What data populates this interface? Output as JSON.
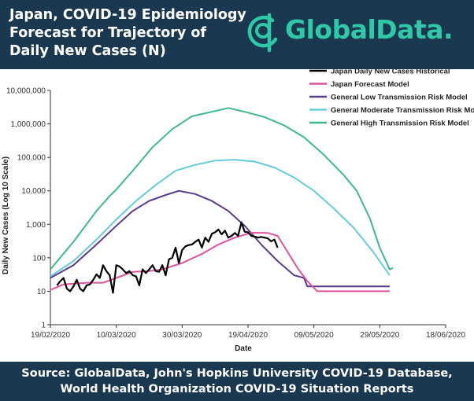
{
  "header": {
    "title_lines": [
      "Japan, COVID-19 Epidemiology",
      "Forecast for Trajectory of",
      "Daily New Cases (N)"
    ],
    "logo_text": "GlobalData.",
    "bg_color": "#1a3950",
    "logo_color": "#2fc9a7"
  },
  "footer": {
    "lines": [
      "Source: GlobalData, John's Hopkins University COVID-19 Database,",
      "World Health Organization COVID-19 Situation Reports"
    ]
  },
  "chart_data": {
    "type": "line",
    "xlabel": "Date",
    "ylabel": "Daily New Cases (Log 10 Scale)",
    "y_scale": "log",
    "ylim": [
      1,
      10000000
    ],
    "y_ticks": [
      "1",
      "10",
      "100",
      "1,000",
      "10,000",
      "100,000",
      "1,000,000",
      "10,000,000"
    ],
    "y_tick_values": [
      1,
      10,
      100,
      1000,
      10000,
      100000,
      1000000,
      10000000
    ],
    "xlim": [
      "2020-02-19",
      "2020-06-18"
    ],
    "x_ticks": [
      "19/02/2020",
      "10/03/2020",
      "30/03/2020",
      "19/04/2020",
      "09/05/2020",
      "29/05/2020",
      "18/06/2020"
    ],
    "x_tick_dates": [
      "2020-02-19",
      "2020-03-10",
      "2020-03-30",
      "2020-04-19",
      "2020-05-09",
      "2020-05-29",
      "2020-06-18"
    ],
    "legend_position": "top-right",
    "grid": false,
    "series": [
      {
        "name": "Japan Daily New Cases Historical",
        "color": "#000000",
        "points": [
          [
            "2020-02-21",
            15
          ],
          [
            "2020-02-22",
            20
          ],
          [
            "2020-02-23",
            25
          ],
          [
            "2020-02-24",
            12
          ],
          [
            "2020-02-25",
            10
          ],
          [
            "2020-02-26",
            14
          ],
          [
            "2020-02-27",
            22
          ],
          [
            "2020-02-28",
            12
          ],
          [
            "2020-02-29",
            10
          ],
          [
            "2020-03-01",
            15
          ],
          [
            "2020-03-02",
            16
          ],
          [
            "2020-03-03",
            22
          ],
          [
            "2020-03-04",
            32
          ],
          [
            "2020-03-05",
            25
          ],
          [
            "2020-03-06",
            60
          ],
          [
            "2020-03-07",
            40
          ],
          [
            "2020-03-08",
            30
          ],
          [
            "2020-03-09",
            9
          ],
          [
            "2020-03-10",
            60
          ],
          [
            "2020-03-11",
            55
          ],
          [
            "2020-03-12",
            45
          ],
          [
            "2020-03-13",
            35
          ],
          [
            "2020-03-14",
            40
          ],
          [
            "2020-03-15",
            30
          ],
          [
            "2020-03-16",
            28
          ],
          [
            "2020-03-17",
            15
          ],
          [
            "2020-03-18",
            45
          ],
          [
            "2020-03-19",
            35
          ],
          [
            "2020-03-20",
            45
          ],
          [
            "2020-03-21",
            60
          ],
          [
            "2020-03-22",
            40
          ],
          [
            "2020-03-23",
            38
          ],
          [
            "2020-03-24",
            60
          ],
          [
            "2020-03-25",
            30
          ],
          [
            "2020-03-26",
            90
          ],
          [
            "2020-03-27",
            100
          ],
          [
            "2020-03-28",
            200
          ],
          [
            "2020-03-29",
            70
          ],
          [
            "2020-03-30",
            170
          ],
          [
            "2020-03-31",
            220
          ],
          [
            "2020-04-01",
            240
          ],
          [
            "2020-04-02",
            250
          ],
          [
            "2020-04-03",
            300
          ],
          [
            "2020-04-04",
            350
          ],
          [
            "2020-04-05",
            200
          ],
          [
            "2020-04-06",
            400
          ],
          [
            "2020-04-07",
            300
          ],
          [
            "2020-04-08",
            520
          ],
          [
            "2020-04-09",
            580
          ],
          [
            "2020-04-10",
            700
          ],
          [
            "2020-04-11",
            500
          ],
          [
            "2020-04-12",
            650
          ],
          [
            "2020-04-13",
            400
          ],
          [
            "2020-04-14",
            450
          ],
          [
            "2020-04-15",
            550
          ],
          [
            "2020-04-16",
            450
          ],
          [
            "2020-04-17",
            1150
          ],
          [
            "2020-04-18",
            600
          ],
          [
            "2020-04-19",
            580
          ],
          [
            "2020-04-20",
            450
          ],
          [
            "2020-04-21",
            430
          ],
          [
            "2020-04-22",
            400
          ],
          [
            "2020-04-23",
            420
          ],
          [
            "2020-04-24",
            400
          ],
          [
            "2020-04-25",
            380
          ],
          [
            "2020-04-26",
            310
          ],
          [
            "2020-04-27",
            350
          ],
          [
            "2020-04-28",
            200
          ]
        ]
      },
      {
        "name": "Japan Forecast Model",
        "color": "#e0529e",
        "points": [
          [
            "2020-02-19",
            11
          ],
          [
            "2020-02-23",
            16
          ],
          [
            "2020-03-01",
            18
          ],
          [
            "2020-03-06",
            18
          ],
          [
            "2020-03-10",
            25
          ],
          [
            "2020-03-15",
            38
          ],
          [
            "2020-03-20",
            40
          ],
          [
            "2020-03-24",
            45
          ],
          [
            "2020-03-30",
            70
          ],
          [
            "2020-04-05",
            130
          ],
          [
            "2020-04-10",
            250
          ],
          [
            "2020-04-15",
            400
          ],
          [
            "2020-04-20",
            560
          ],
          [
            "2020-04-25",
            550
          ],
          [
            "2020-04-28",
            450
          ],
          [
            "2020-05-01",
            150
          ],
          [
            "2020-05-04",
            50
          ],
          [
            "2020-05-07",
            20
          ],
          [
            "2020-05-10",
            10
          ],
          [
            "2020-06-01",
            10
          ]
        ]
      },
      {
        "name": "General Low Transmission Risk Model",
        "color": "#5a3a8a",
        "points": [
          [
            "2020-02-19",
            25
          ],
          [
            "2020-02-26",
            60
          ],
          [
            "2020-03-04",
            250
          ],
          [
            "2020-03-10",
            900
          ],
          [
            "2020-03-15",
            2500
          ],
          [
            "2020-03-20",
            5000
          ],
          [
            "2020-03-25",
            7500
          ],
          [
            "2020-03-29",
            10000
          ],
          [
            "2020-04-03",
            8000
          ],
          [
            "2020-04-08",
            5000
          ],
          [
            "2020-04-13",
            2500
          ],
          [
            "2020-04-18",
            900
          ],
          [
            "2020-04-23",
            250
          ],
          [
            "2020-04-28",
            80
          ],
          [
            "2020-05-03",
            30
          ],
          [
            "2020-05-06",
            25
          ],
          [
            "2020-05-07",
            14
          ],
          [
            "2020-06-01",
            14
          ]
        ]
      },
      {
        "name": "General Moderate Transmission Risk Model",
        "color": "#66ccdd",
        "points": [
          [
            "2020-02-19",
            28
          ],
          [
            "2020-02-26",
            80
          ],
          [
            "2020-03-04",
            350
          ],
          [
            "2020-03-10",
            1400
          ],
          [
            "2020-03-16",
            5000
          ],
          [
            "2020-03-22",
            15000
          ],
          [
            "2020-03-28",
            40000
          ],
          [
            "2020-04-03",
            60000
          ],
          [
            "2020-04-09",
            80000
          ],
          [
            "2020-04-15",
            85000
          ],
          [
            "2020-04-21",
            75000
          ],
          [
            "2020-04-27",
            50000
          ],
          [
            "2020-05-03",
            25000
          ],
          [
            "2020-05-09",
            10000
          ],
          [
            "2020-05-15",
            3000
          ],
          [
            "2020-05-21",
            800
          ],
          [
            "2020-05-27",
            150
          ],
          [
            "2020-06-01",
            30
          ]
        ]
      },
      {
        "name": "General High Transmission Risk Model",
        "color": "#3cb891",
        "points": [
          [
            "2020-02-19",
            45
          ],
          [
            "2020-02-26",
            300
          ],
          [
            "2020-03-04",
            2500
          ],
          [
            "2020-03-08",
            7000
          ],
          [
            "2020-03-10",
            11000
          ],
          [
            "2020-03-15",
            40000
          ],
          [
            "2020-03-21",
            200000
          ],
          [
            "2020-03-27",
            700000
          ],
          [
            "2020-04-02",
            1700000
          ],
          [
            "2020-04-08",
            2300000
          ],
          [
            "2020-04-13",
            3000000
          ],
          [
            "2020-04-18",
            2300000
          ],
          [
            "2020-04-24",
            1600000
          ],
          [
            "2020-04-30",
            900000
          ],
          [
            "2020-05-06",
            400000
          ],
          [
            "2020-05-12",
            120000
          ],
          [
            "2020-05-18",
            30000
          ],
          [
            "2020-05-22",
            10000
          ],
          [
            "2020-05-26",
            1500
          ],
          [
            "2020-05-29",
            200
          ],
          [
            "2020-06-01",
            45
          ],
          [
            "2020-06-02",
            50
          ]
        ]
      }
    ]
  }
}
